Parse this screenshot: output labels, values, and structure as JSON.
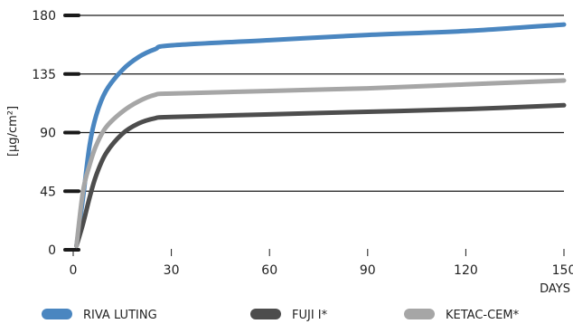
{
  "chart_data": {
    "type": "line",
    "title": "",
    "xlabel": "DAYS",
    "ylabel": "[µg/cm²]",
    "xlim": [
      0,
      150
    ],
    "ylim": [
      0,
      180
    ],
    "x_ticks": [
      0,
      30,
      60,
      90,
      120,
      150
    ],
    "y_ticks": [
      0,
      45,
      90,
      135,
      180
    ],
    "grid": "horizontal",
    "legend_position": "bottom",
    "series": [
      {
        "name": "RIVA LUTING",
        "color": "#4a86c0",
        "points": [
          [
            1,
            3
          ],
          [
            3,
            40
          ],
          [
            5,
            80
          ],
          [
            7,
            103
          ],
          [
            10,
            122
          ],
          [
            15,
            138
          ],
          [
            20,
            148
          ],
          [
            25,
            154
          ],
          [
            30,
            157
          ],
          [
            60,
            161
          ],
          [
            90,
            165
          ],
          [
            120,
            168
          ],
          [
            150,
            173
          ]
        ]
      },
      {
        "name": "FUJI I*",
        "color": "#4d4d4d",
        "points": [
          [
            1,
            3
          ],
          [
            3,
            20
          ],
          [
            5,
            40
          ],
          [
            7,
            57
          ],
          [
            10,
            74
          ],
          [
            15,
            89
          ],
          [
            20,
            97
          ],
          [
            25,
            101
          ],
          [
            30,
            102
          ],
          [
            60,
            104
          ],
          [
            90,
            106
          ],
          [
            120,
            108
          ],
          [
            150,
            111
          ]
        ]
      },
      {
        "name": "KETAC-CEM*",
        "color": "#a6a6a6",
        "points": [
          [
            1,
            3
          ],
          [
            3,
            45
          ],
          [
            5,
            65
          ],
          [
            7,
            80
          ],
          [
            10,
            94
          ],
          [
            15,
            106
          ],
          [
            20,
            114
          ],
          [
            25,
            119
          ],
          [
            30,
            120
          ],
          [
            60,
            122
          ],
          [
            90,
            124
          ],
          [
            120,
            127
          ],
          [
            150,
            130
          ]
        ]
      }
    ]
  }
}
